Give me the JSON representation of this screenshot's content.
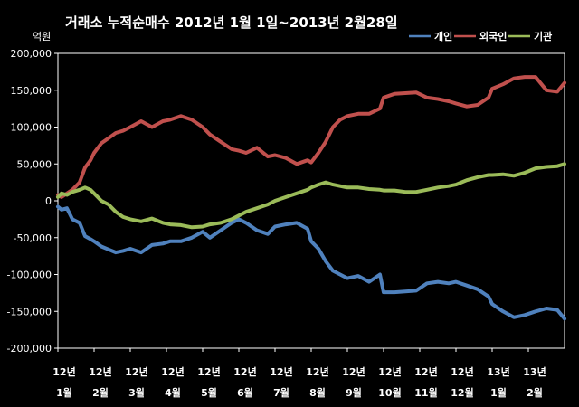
{
  "chart_data": {
    "type": "line",
    "title": "거래소 누적순매수 2012년 1월 1일~2013년 2월28일",
    "unit_label": "억원",
    "ylim": [
      -200000,
      200000
    ],
    "yticks": [
      "200,000",
      "150,000",
      "100,000",
      "50,000",
      "0",
      "-50,000",
      "-100,000",
      "-150,000",
      "-200,000"
    ],
    "ytick_values": [
      200000,
      150000,
      100000,
      50000,
      0,
      -50000,
      -100000,
      -150000,
      -200000
    ],
    "xticks": [
      {
        "year": "12년",
        "month": "1월"
      },
      {
        "year": "12년",
        "month": "2월"
      },
      {
        "year": "12년",
        "month": "3월"
      },
      {
        "year": "12년",
        "month": "4월"
      },
      {
        "year": "12년",
        "month": "5월"
      },
      {
        "year": "12년",
        "month": "6월"
      },
      {
        "year": "12년",
        "month": "7월"
      },
      {
        "year": "12년",
        "month": "8월"
      },
      {
        "year": "12년",
        "month": "9월"
      },
      {
        "year": "12년",
        "month": "10월"
      },
      {
        "year": "12년",
        "month": "11월"
      },
      {
        "year": "12년",
        "month": "12월"
      },
      {
        "year": "13년",
        "month": "1월"
      },
      {
        "year": "13년",
        "month": "2월"
      }
    ],
    "legend_position": "top-right",
    "grid": false,
    "x_months": [
      0,
      0.1,
      0.25,
      0.4,
      0.6,
      0.75,
      0.9,
      1.0,
      1.2,
      1.4,
      1.6,
      1.8,
      2.0,
      2.3,
      2.6,
      2.9,
      3.1,
      3.4,
      3.7,
      4.0,
      4.2,
      4.5,
      4.8,
      5.0,
      5.2,
      5.5,
      5.8,
      6.0,
      6.3,
      6.6,
      6.9,
      7.0,
      7.2,
      7.4,
      7.6,
      7.8,
      8.0,
      8.3,
      8.6,
      8.9,
      9.0,
      9.3,
      9.6,
      9.9,
      10.2,
      10.5,
      10.8,
      11.0,
      11.3,
      11.6,
      11.9,
      12.0,
      12.3,
      12.6,
      12.9,
      13.2,
      13.5,
      13.8,
      14.0
    ],
    "series": [
      {
        "name": "개인",
        "color": "#4f81bd",
        "values": [
          -8000,
          -12000,
          -10000,
          -25000,
          -30000,
          -48000,
          -52000,
          -55000,
          -62000,
          -66000,
          -70000,
          -68000,
          -65000,
          -70000,
          -60000,
          -58000,
          -55000,
          -55000,
          -50000,
          -42000,
          -50000,
          -40000,
          -30000,
          -25000,
          -30000,
          -40000,
          -45000,
          -35000,
          -32000,
          -30000,
          -38000,
          -55000,
          -65000,
          -82000,
          -95000,
          -100000,
          -105000,
          -102000,
          -110000,
          -100000,
          -124000,
          -124000,
          -123000,
          -122000,
          -112000,
          -110000,
          -112000,
          -110000,
          -115000,
          -120000,
          -130000,
          -140000,
          -150000,
          -158000,
          -155000,
          -150000,
          -146000,
          -148000,
          -160000
        ]
      },
      {
        "name": "외국인",
        "color": "#c0504d",
        "values": [
          8000,
          5000,
          10000,
          15000,
          25000,
          45000,
          55000,
          65000,
          78000,
          85000,
          92000,
          95000,
          100000,
          108000,
          100000,
          108000,
          110000,
          115000,
          110000,
          100000,
          90000,
          80000,
          70000,
          68000,
          65000,
          72000,
          60000,
          62000,
          58000,
          50000,
          55000,
          52000,
          65000,
          80000,
          100000,
          110000,
          115000,
          118000,
          118000,
          125000,
          140000,
          145000,
          146000,
          147000,
          140000,
          138000,
          135000,
          132000,
          128000,
          130000,
          140000,
          152000,
          158000,
          166000,
          168000,
          168000,
          150000,
          148000,
          160000
        ]
      },
      {
        "name": "기관",
        "color": "#9bbb59",
        "values": [
          5000,
          10000,
          8000,
          12000,
          15000,
          18000,
          15000,
          10000,
          0,
          -5000,
          -15000,
          -22000,
          -25000,
          -28000,
          -24000,
          -30000,
          -32000,
          -33000,
          -36000,
          -35000,
          -32000,
          -30000,
          -25000,
          -20000,
          -15000,
          -10000,
          -5000,
          0,
          5000,
          10000,
          15000,
          18000,
          22000,
          25000,
          22000,
          20000,
          18000,
          18000,
          16000,
          15000,
          14000,
          14000,
          12000,
          12000,
          15000,
          18000,
          20000,
          22000,
          28000,
          32000,
          35000,
          35000,
          36000,
          34000,
          38000,
          44000,
          46000,
          47000,
          50000
        ]
      }
    ]
  }
}
